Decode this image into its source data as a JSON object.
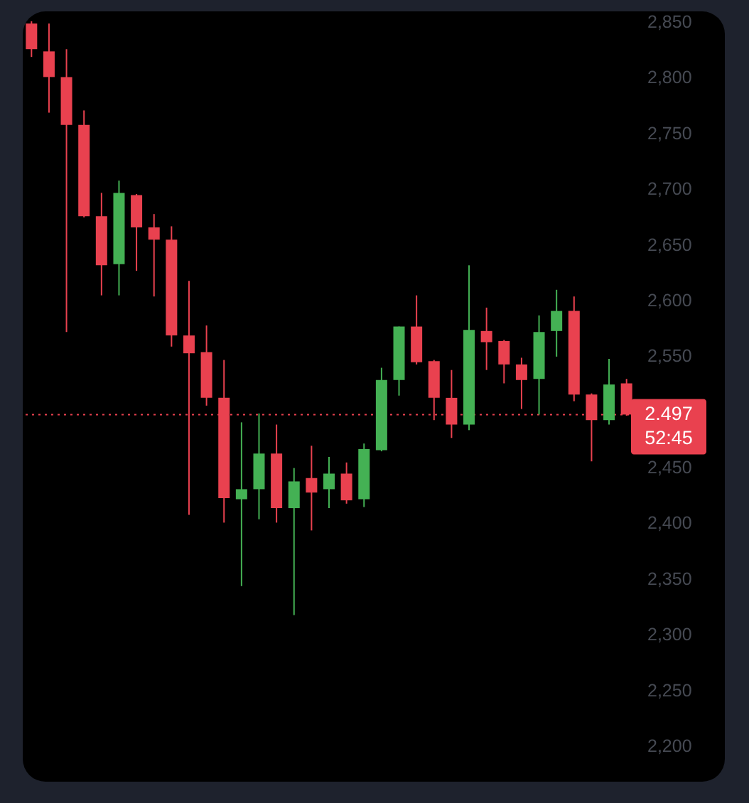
{
  "chart_data": {
    "type": "candlestick",
    "categories": [
      null,
      null,
      null,
      null,
      null,
      null,
      null,
      null,
      null,
      null,
      null,
      null,
      null,
      null,
      null,
      null,
      null,
      null,
      null,
      null,
      null,
      null,
      null,
      null,
      null,
      null,
      null,
      null,
      null,
      null,
      null,
      null,
      null,
      null,
      null
    ],
    "ohlc": [
      [
        2848,
        2850,
        2818,
        2825
      ],
      [
        2823,
        2848,
        2768,
        2800
      ],
      [
        2800,
        2825,
        2571,
        2757
      ],
      [
        2757,
        2770,
        2674,
        2675
      ],
      [
        2675,
        2696,
        2604,
        2631
      ],
      [
        2632,
        2707,
        2604,
        2696
      ],
      [
        2694,
        2695,
        2626,
        2665
      ],
      [
        2665,
        2677,
        2603,
        2654
      ],
      [
        2654,
        2666,
        2558,
        2568
      ],
      [
        2568,
        2617,
        2407,
        2552
      ],
      [
        2553,
        2577,
        2505,
        2512
      ],
      [
        2512,
        2546,
        2400,
        2422
      ],
      [
        2421,
        2490,
        2343,
        2430
      ],
      [
        2430,
        2498,
        2403,
        2462
      ],
      [
        2462,
        2488,
        2400,
        2413
      ],
      [
        2413,
        2449,
        2317,
        2437
      ],
      [
        2440,
        2469,
        2393,
        2427
      ],
      [
        2430,
        2459,
        2413,
        2444
      ],
      [
        2444,
        2454,
        2417,
        2420
      ],
      [
        2421,
        2471,
        2414,
        2466
      ],
      [
        2465,
        2539,
        2464,
        2528
      ],
      [
        2528,
        2576,
        2514,
        2576
      ],
      [
        2576,
        2604,
        2542,
        2544
      ],
      [
        2545,
        2546,
        2492,
        2512
      ],
      [
        2512,
        2537,
        2476,
        2488
      ],
      [
        2488,
        2631,
        2483,
        2573
      ],
      [
        2572,
        2593,
        2537,
        2562
      ],
      [
        2563,
        2564,
        2525,
        2542
      ],
      [
        2542,
        2548,
        2502,
        2528
      ],
      [
        2529,
        2586,
        2497,
        2571
      ],
      [
        2572,
        2609,
        2549,
        2590
      ],
      [
        2590,
        2603,
        2509,
        2515
      ],
      [
        2515,
        2516,
        2455,
        2492
      ],
      [
        2492,
        2547,
        2488,
        2524
      ],
      [
        2525,
        2529,
        2496,
        2497
      ]
    ],
    "colors": [
      "#e9414f",
      "#e9414f",
      "#e9414f",
      "#e9414f",
      "#e9414f",
      "#44b154",
      "#e9414f",
      "#e9414f",
      "#e9414f",
      "#e9414f",
      "#e9414f",
      "#e9414f",
      "#44b154",
      "#44b154",
      "#e9414f",
      "#44b154",
      "#e9414f",
      "#44b154",
      "#e9414f",
      "#44b154",
      "#44b154",
      "#44b154",
      "#e9414f",
      "#e9414f",
      "#e9414f",
      "#44b154",
      "#e9414f",
      "#e9414f",
      "#e9414f",
      "#44b154",
      "#44b154",
      "#e9414f",
      "#e9414f",
      "#44b154",
      "#e9414f"
    ],
    "ylim": [
      2170,
      2850
    ],
    "yticks": [
      {
        "value": 2200,
        "label": "2,200"
      },
      {
        "value": 2250,
        "label": "2,250"
      },
      {
        "value": 2300,
        "label": "2,300"
      },
      {
        "value": 2350,
        "label": "2,350"
      },
      {
        "value": 2400,
        "label": "2,400"
      },
      {
        "value": 2450,
        "label": "2,450"
      },
      {
        "value": 2550,
        "label": "2,550"
      },
      {
        "value": 2600,
        "label": "2,600"
      },
      {
        "value": 2650,
        "label": "2,650"
      },
      {
        "value": 2700,
        "label": "2,700"
      },
      {
        "value": 2750,
        "label": "2,750"
      },
      {
        "value": 2800,
        "label": "2,800"
      },
      {
        "value": 2850,
        "label": "2,850"
      }
    ],
    "tick_labels": "y",
    "ref_lines": [
      {
        "axis": "y",
        "value": 2497,
        "color": "#e9414f",
        "line_style": "dotted"
      }
    ],
    "annotations": [
      "2.497",
      "52:45"
    ]
  }
}
